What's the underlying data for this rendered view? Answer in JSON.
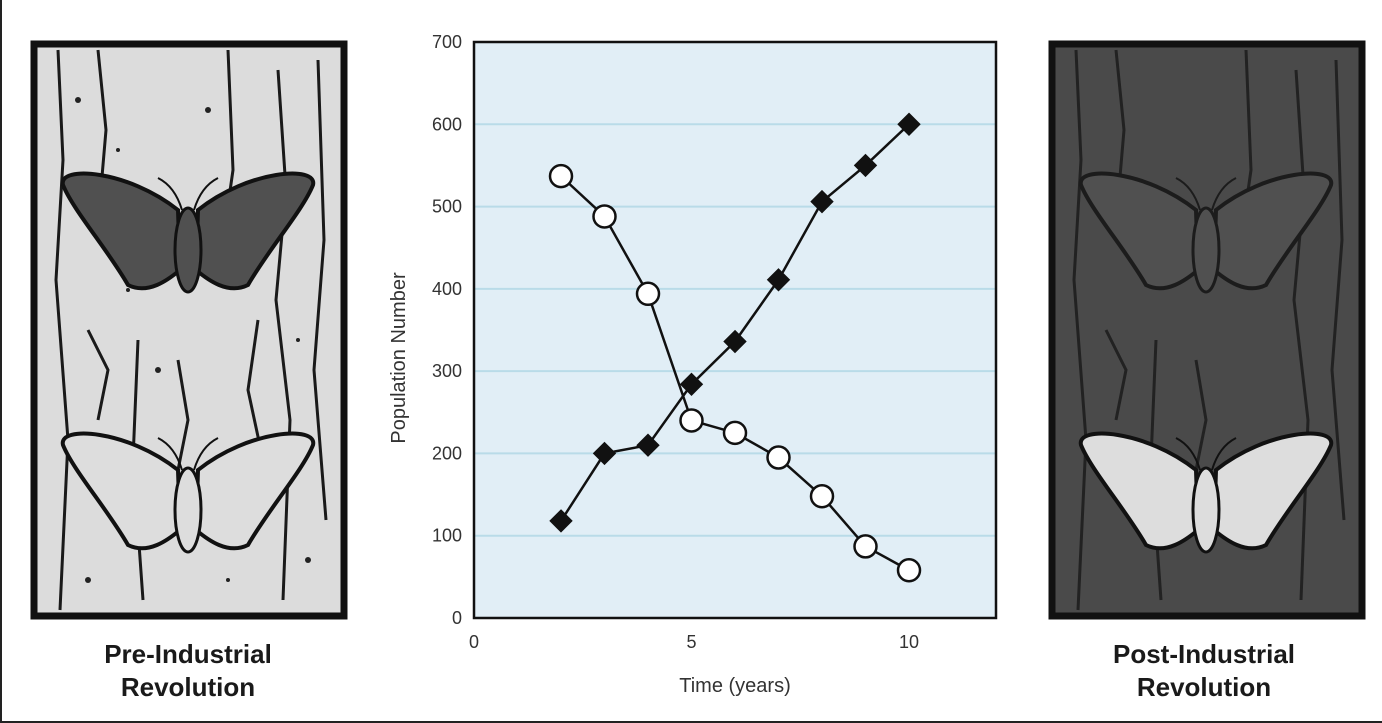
{
  "panels": {
    "left_caption_line1": "Pre-Industrial",
    "left_caption_line2": "Revolution",
    "right_caption_line1": "Post-Industrial",
    "right_caption_line2": "Revolution",
    "left_bark_color": "#dcdcdc",
    "right_bark_color": "#4a4a4a",
    "dark_moth_color": "#505050",
    "light_moth_color": "#dddddd"
  },
  "chart_data": {
    "type": "line",
    "xlabel": "Time (years)",
    "ylabel": "Population Number",
    "xlim": [
      0,
      12
    ],
    "ylim": [
      0,
      700
    ],
    "xticks": [
      0,
      5,
      10
    ],
    "yticks": [
      0,
      100,
      200,
      300,
      400,
      500,
      600,
      700
    ],
    "grid": true,
    "background": "#e1eef6",
    "gridline_color": "#b9dbe8",
    "series": [
      {
        "marker": "open-circle",
        "x": [
          2,
          3,
          4,
          5,
          6,
          7,
          8,
          9,
          10
        ],
        "y": [
          537,
          488,
          394,
          240,
          225,
          195,
          148,
          87,
          58
        ]
      },
      {
        "marker": "filled-diamond",
        "x": [
          2,
          3,
          4,
          5,
          6,
          7,
          8,
          9,
          10
        ],
        "y": [
          118,
          200,
          210,
          284,
          336,
          411,
          506,
          550,
          600
        ]
      }
    ]
  }
}
